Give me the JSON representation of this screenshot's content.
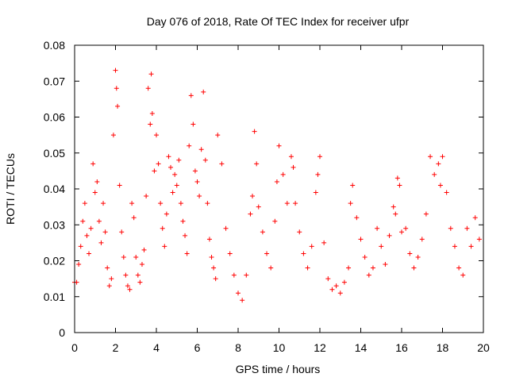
{
  "chart_data": {
    "type": "scatter",
    "title": "Day 076 of 2018, Rate Of TEC Index for receiver ufpr",
    "xlabel": "GPS time / hours",
    "ylabel": "ROTI / TECUs",
    "xlim": [
      0,
      20
    ],
    "ylim": [
      0,
      0.08
    ],
    "xticks": [
      0,
      2,
      4,
      6,
      8,
      10,
      12,
      14,
      16,
      18,
      20
    ],
    "xtick_labels": [
      "0",
      "2",
      "4",
      "6",
      "8",
      "10",
      "12",
      "14",
      "16",
      "18",
      "20"
    ],
    "yticks": [
      0,
      0.01,
      0.02,
      0.03,
      0.04,
      0.05,
      0.06,
      0.07,
      0.08
    ],
    "ytick_labels": [
      "0",
      "0.01",
      "0.02",
      "0.03",
      "0.04",
      "0.05",
      "0.06",
      "0.07",
      "0.08"
    ],
    "grid": false,
    "marker": "+",
    "color": "#ff0000",
    "series": [
      {
        "name": "ROTI",
        "x": [
          0.0,
          0.1,
          0.2,
          0.3,
          0.4,
          0.5,
          0.6,
          0.7,
          0.8,
          0.9,
          1.0,
          1.1,
          1.2,
          1.3,
          1.4,
          1.5,
          1.6,
          1.7,
          1.8,
          1.9,
          2.0,
          2.05,
          2.1,
          2.2,
          2.3,
          2.4,
          2.5,
          2.6,
          2.7,
          2.8,
          2.9,
          3.0,
          3.1,
          3.2,
          3.3,
          3.4,
          3.5,
          3.6,
          3.7,
          3.75,
          3.8,
          3.9,
          4.0,
          4.1,
          4.2,
          4.3,
          4.4,
          4.5,
          4.6,
          4.7,
          4.8,
          4.9,
          5.0,
          5.1,
          5.2,
          5.3,
          5.4,
          5.5,
          5.6,
          5.7,
          5.8,
          5.9,
          6.0,
          6.1,
          6.2,
          6.3,
          6.4,
          6.5,
          6.6,
          6.7,
          6.8,
          6.9,
          7.0,
          7.2,
          7.4,
          7.6,
          7.8,
          8.0,
          8.2,
          8.4,
          8.6,
          8.7,
          8.8,
          8.9,
          9.0,
          9.2,
          9.4,
          9.6,
          9.8,
          9.9,
          10.0,
          10.2,
          10.4,
          10.6,
          10.7,
          10.8,
          11.0,
          11.2,
          11.4,
          11.6,
          11.8,
          11.9,
          12.0,
          12.2,
          12.4,
          12.6,
          12.8,
          13.0,
          13.2,
          13.4,
          13.5,
          13.6,
          13.8,
          14.0,
          14.2,
          14.4,
          14.6,
          14.8,
          15.0,
          15.2,
          15.4,
          15.6,
          15.7,
          15.8,
          15.9,
          16.0,
          16.2,
          16.4,
          16.6,
          16.8,
          17.0,
          17.2,
          17.4,
          17.6,
          17.8,
          17.9,
          18.0,
          18.2,
          18.4,
          18.6,
          18.8,
          19.0,
          19.2,
          19.4,
          19.6,
          19.8
        ],
        "y": [
          0.014,
          0.014,
          0.019,
          0.024,
          0.031,
          0.036,
          0.027,
          0.022,
          0.029,
          0.047,
          0.039,
          0.042,
          0.031,
          0.025,
          0.036,
          0.028,
          0.018,
          0.013,
          0.015,
          0.055,
          0.073,
          0.068,
          0.063,
          0.041,
          0.028,
          0.021,
          0.016,
          0.013,
          0.012,
          0.036,
          0.032,
          0.021,
          0.016,
          0.014,
          0.019,
          0.023,
          0.038,
          0.068,
          0.058,
          0.072,
          0.061,
          0.045,
          0.055,
          0.047,
          0.036,
          0.029,
          0.024,
          0.033,
          0.049,
          0.046,
          0.039,
          0.044,
          0.041,
          0.048,
          0.036,
          0.031,
          0.027,
          0.022,
          0.052,
          0.066,
          0.058,
          0.045,
          0.042,
          0.038,
          0.051,
          0.067,
          0.048,
          0.036,
          0.026,
          0.021,
          0.018,
          0.015,
          0.055,
          0.047,
          0.029,
          0.022,
          0.016,
          0.011,
          0.009,
          0.016,
          0.033,
          0.038,
          0.056,
          0.047,
          0.035,
          0.028,
          0.022,
          0.018,
          0.031,
          0.042,
          0.052,
          0.044,
          0.036,
          0.049,
          0.046,
          0.036,
          0.028,
          0.022,
          0.018,
          0.024,
          0.039,
          0.044,
          0.049,
          0.025,
          0.015,
          0.012,
          0.013,
          0.011,
          0.014,
          0.018,
          0.036,
          0.041,
          0.032,
          0.026,
          0.021,
          0.016,
          0.018,
          0.029,
          0.024,
          0.019,
          0.027,
          0.035,
          0.033,
          0.043,
          0.041,
          0.028,
          0.029,
          0.022,
          0.018,
          0.021,
          0.026,
          0.033,
          0.049,
          0.044,
          0.047,
          0.041,
          0.049,
          0.039,
          0.029,
          0.024,
          0.018,
          0.016,
          0.029,
          0.024,
          0.032,
          0.026
        ]
      }
    ]
  }
}
